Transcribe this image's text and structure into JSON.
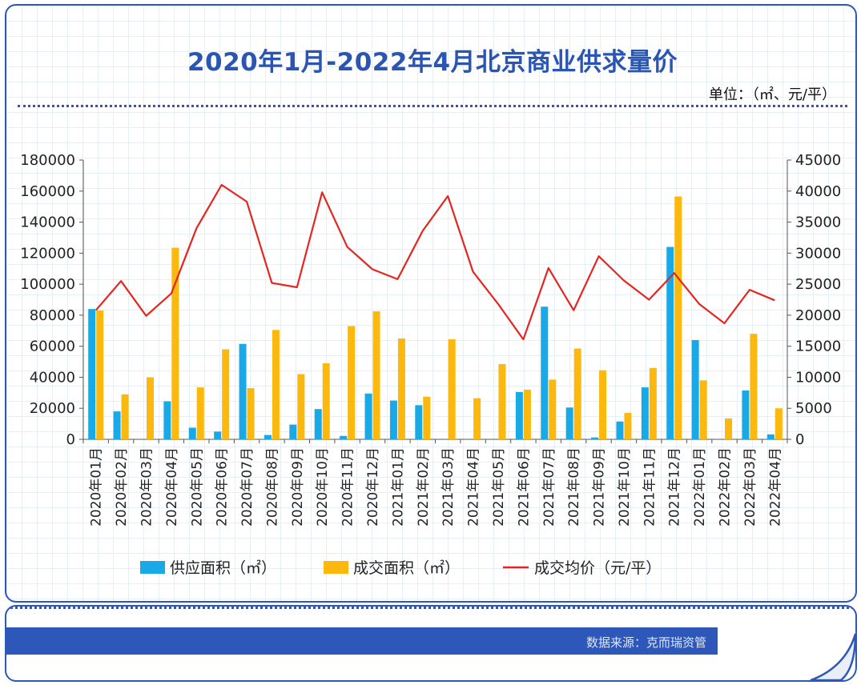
{
  "title": "2020年1月-2022年4月北京商业供求量价",
  "unit": "单位：（㎡、元/平）",
  "source": "数据来源：克而瑞资管",
  "colors": {
    "supply": "#19a9e6",
    "deal": "#fbb80f",
    "price": "#e52620",
    "brand": "#2d58ba"
  },
  "chart_data": {
    "type": "bar",
    "categories": [
      "2020年01月",
      "2020年02月",
      "2020年03月",
      "2020年04月",
      "2020年05月",
      "2020年06月",
      "2020年07月",
      "2020年08月",
      "2020年09月",
      "2020年10月",
      "2020年11月",
      "2020年12月",
      "2021年01月",
      "2021年02月",
      "2021年03月",
      "2021年04月",
      "2021年05月",
      "2021年06月",
      "2021年07月",
      "2021年08月",
      "2021年09月",
      "2021年10月",
      "2021年11月",
      "2021年12月",
      "2022年01月",
      "2022年02月",
      "2022年03月",
      "2022年04月"
    ],
    "series": [
      {
        "name": "供应面积（㎡）",
        "type": "bar",
        "axis": "left",
        "values": [
          84000,
          18000,
          0,
          24500,
          7500,
          5000,
          61500,
          2800,
          9500,
          19500,
          2200,
          29500,
          25000,
          22000,
          0,
          0,
          0,
          30500,
          85500,
          20500,
          1200,
          11500,
          33500,
          124000,
          64000,
          0,
          31500,
          3200
        ]
      },
      {
        "name": "成交面积（㎡）",
        "type": "bar",
        "axis": "left",
        "values": [
          83000,
          29000,
          40000,
          123500,
          33500,
          58000,
          33000,
          70500,
          42000,
          49000,
          73000,
          82500,
          65000,
          27500,
          64500,
          26500,
          48500,
          32000,
          38500,
          58500,
          44500,
          17000,
          46000,
          156500,
          38000,
          13500,
          68000,
          20000
        ]
      },
      {
        "name": "成交均价（元/平）",
        "type": "line",
        "axis": "right",
        "values": [
          20800,
          25500,
          19900,
          23500,
          34000,
          41000,
          38300,
          25200,
          24500,
          39800,
          31000,
          27400,
          25800,
          33600,
          39200,
          27000,
          21800,
          16100,
          27600,
          20800,
          29500,
          25600,
          22500,
          26800,
          21800,
          18700,
          24100,
          22400
        ]
      }
    ],
    "yleft": {
      "min": 0,
      "max": 180000,
      "ticks": [
        0,
        20000,
        40000,
        60000,
        80000,
        100000,
        120000,
        140000,
        160000,
        180000
      ]
    },
    "yright": {
      "min": 0,
      "max": 45000,
      "ticks": [
        0,
        5000,
        10000,
        15000,
        20000,
        25000,
        30000,
        35000,
        40000,
        45000
      ]
    },
    "legend_position": "bottom"
  }
}
